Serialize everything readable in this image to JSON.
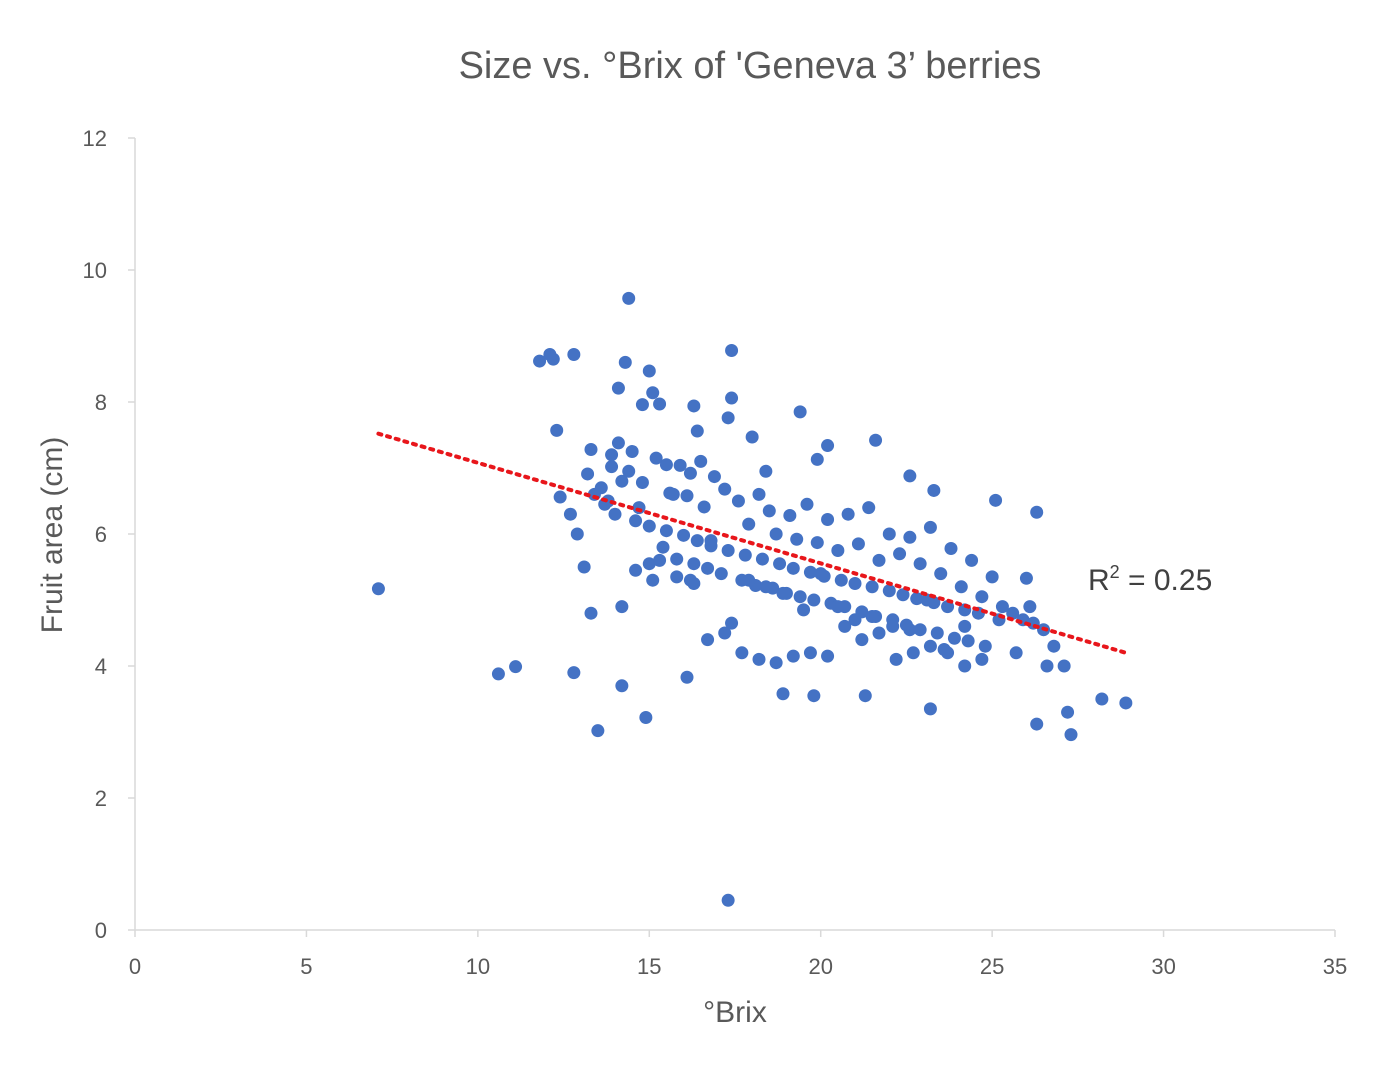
{
  "chart_data": {
    "type": "scatter",
    "title": "Size vs. °Brix of 'Geneva 3’ berries",
    "xlabel": "°Brix",
    "ylabel": "Fruit area (cm)",
    "xlim": [
      0,
      35
    ],
    "ylim": [
      0,
      12
    ],
    "xticks": [
      "0",
      "5",
      "10",
      "15",
      "20",
      "25",
      "30",
      "35"
    ],
    "yticks": [
      "0",
      "2",
      "4",
      "6",
      "8",
      "10",
      "12"
    ],
    "grid": false,
    "legend": "none",
    "colors": {
      "points": "#4472C4",
      "trendline": "#E8161B",
      "axis": "#D9D9D9",
      "text": "#595959"
    },
    "trendline": {
      "type": "linear",
      "x": [
        7.1,
        28.9
      ],
      "y": [
        7.52,
        4.2
      ],
      "style": "dotted",
      "label": {
        "r2_prefix": "R",
        "r2_sup": "2",
        "r2_suffix": " = 0.25"
      }
    },
    "series": [
      {
        "x": [
          7.1,
          10.6,
          11.1,
          11.8,
          12.1,
          12.2,
          12.3,
          12.8,
          12.8,
          13.5,
          14.2,
          14.4,
          14.3,
          15.0,
          14.9,
          14.1,
          14.8,
          15.1,
          15.3,
          15.5,
          16.1,
          16.3,
          16.4,
          16.5,
          17.4,
          17.4,
          17.3,
          17.3,
          18.0,
          18.4,
          18.9,
          19.4,
          19.8,
          19.9,
          20.2,
          21.3,
          21.6,
          22.6,
          23.2,
          23.3,
          25.1,
          26.0,
          26.3,
          26.3,
          27.2,
          27.3,
          28.2,
          28.9,
          13.2,
          13.3,
          13.7,
          13.9,
          14.1,
          14.2,
          14.0,
          14.5,
          14.8,
          15.2,
          15.6,
          15.9,
          16.1,
          16.2,
          16.6,
          16.9,
          17.2,
          17.6,
          17.9,
          18.2,
          18.5,
          18.7,
          19.1,
          19.3,
          19.6,
          19.9,
          20.2,
          20.5,
          20.8,
          21.1,
          21.4,
          21.7,
          22.0,
          22.3,
          22.6,
          22.9,
          23.2,
          23.5,
          23.8,
          24.1,
          24.4,
          24.7,
          25.0,
          25.3,
          25.6,
          25.9,
          26.2,
          26.5,
          26.8,
          15.4,
          15.8,
          16.3,
          16.7,
          17.1,
          17.7,
          18.1,
          18.6,
          19.0,
          19.4,
          19.8,
          20.3,
          20.7,
          21.2,
          21.6,
          22.1,
          22.5,
          22.9,
          23.4,
          23.9,
          24.3,
          24.8,
          14.6,
          15.0,
          15.5,
          16.0,
          16.4,
          16.8,
          17.3,
          17.8,
          18.3,
          18.8,
          19.2,
          19.7,
          20.1,
          20.6,
          21.0,
          21.5,
          22.0,
          22.4,
          22.8,
          23.3,
          23.7,
          24.2,
          24.6,
          12.4,
          12.9,
          13.3,
          13.6,
          13.9,
          14.4,
          14.7,
          15.1,
          15.7,
          16.2,
          16.7,
          17.2,
          17.7,
          18.2,
          18.7,
          19.2,
          19.7,
          20.2,
          20.7,
          21.2,
          21.7,
          22.2,
          22.7,
          23.2,
          23.7,
          24.2,
          12.7,
          13.1,
          13.4,
          13.8,
          14.2,
          14.6,
          15.0,
          15.3,
          15.8,
          16.3,
          16.8,
          17.4,
          17.9,
          18.4,
          18.9,
          19.5,
          20.0,
          20.5,
          21.0,
          21.5,
          22.1,
          22.6,
          23.1,
          23.6,
          24.2,
          24.7,
          25.2,
          25.7,
          26.1,
          26.6,
          27.1
        ],
        "y": [
          5.17,
          3.88,
          3.99,
          8.62,
          8.72,
          8.65,
          7.57,
          8.72,
          3.9,
          3.02,
          3.7,
          9.57,
          8.6,
          8.47,
          3.22,
          8.21,
          7.96,
          8.14,
          7.97,
          7.05,
          3.83,
          7.94,
          7.56,
          7.1,
          8.78,
          8.06,
          7.76,
          0.45,
          7.47,
          6.95,
          3.58,
          7.85,
          3.55,
          7.13,
          7.34,
          3.55,
          7.42,
          6.88,
          3.35,
          6.66,
          6.51,
          5.33,
          3.12,
          6.33,
          3.3,
          2.96,
          3.5,
          3.44,
          6.91,
          7.28,
          6.45,
          7.02,
          7.38,
          6.8,
          6.3,
          7.25,
          6.78,
          7.15,
          6.62,
          7.04,
          6.58,
          6.92,
          6.41,
          6.87,
          6.68,
          6.5,
          6.15,
          6.6,
          6.35,
          6.0,
          6.28,
          5.92,
          6.45,
          5.87,
          6.22,
          5.75,
          6.3,
          5.85,
          6.4,
          5.6,
          6.0,
          5.7,
          5.95,
          5.55,
          6.1,
          5.4,
          5.78,
          5.2,
          5.6,
          5.05,
          5.35,
          4.9,
          4.8,
          4.7,
          4.65,
          4.55,
          4.3,
          5.8,
          5.62,
          5.55,
          5.48,
          5.4,
          5.3,
          5.22,
          5.18,
          5.1,
          5.05,
          5.0,
          4.95,
          4.9,
          4.82,
          4.75,
          4.7,
          4.62,
          4.55,
          4.5,
          4.42,
          4.38,
          4.3,
          6.2,
          6.12,
          6.05,
          5.98,
          5.9,
          5.82,
          5.75,
          5.68,
          5.62,
          5.55,
          5.48,
          5.42,
          5.36,
          5.3,
          5.25,
          5.2,
          5.14,
          5.08,
          5.02,
          4.96,
          4.9,
          4.85,
          4.8,
          6.56,
          6.0,
          4.8,
          6.7,
          7.2,
          6.95,
          6.4,
          5.3,
          6.6,
          5.3,
          4.4,
          4.5,
          4.2,
          4.1,
          4.05,
          4.15,
          4.2,
          4.15,
          4.6,
          4.4,
          4.5,
          4.1,
          4.2,
          4.3,
          4.2,
          4.0,
          6.3,
          5.5,
          6.6,
          6.5,
          4.9,
          5.45,
          5.55,
          5.6,
          5.35,
          5.25,
          5.9,
          4.65,
          5.3,
          5.2,
          5.1,
          4.85,
          5.4,
          4.9,
          4.7,
          4.75,
          4.6,
          4.55,
          5.0,
          4.25,
          4.6,
          4.1,
          4.7,
          4.2,
          4.9,
          4.0,
          4.0
        ]
      }
    ]
  }
}
